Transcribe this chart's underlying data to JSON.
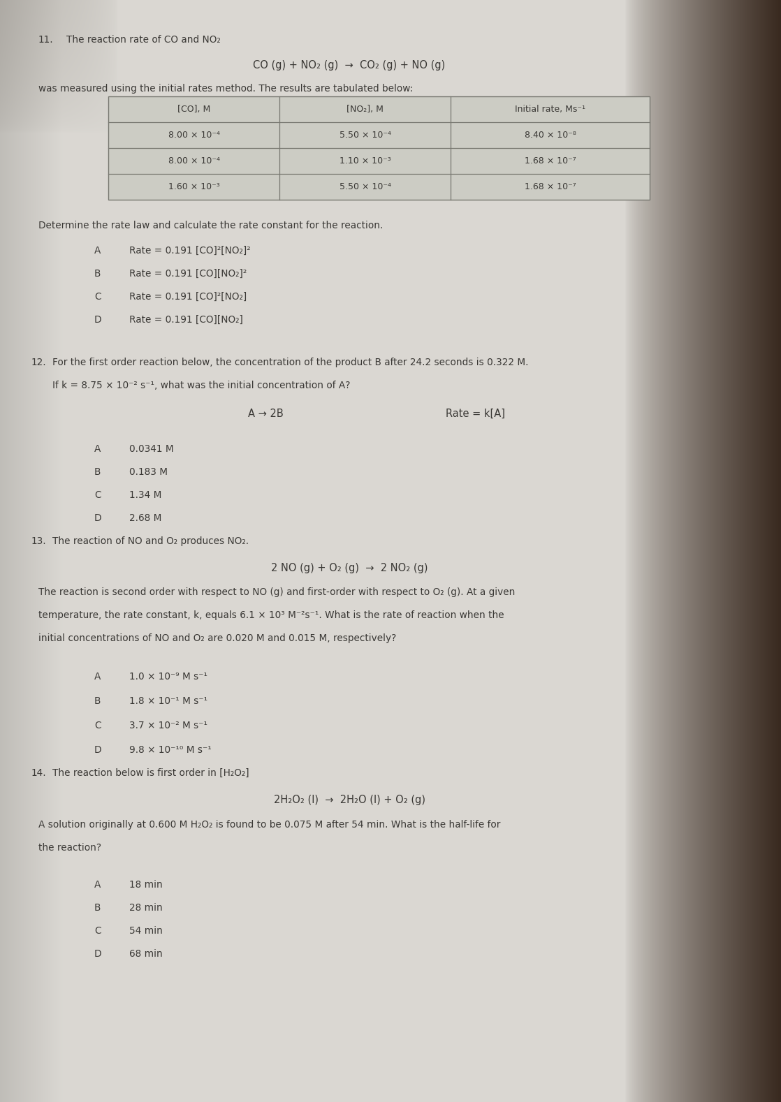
{
  "bg_light": "#d8d5ce",
  "bg_dark_right": "#3a2820",
  "bg_dark_left": "#b0aca4",
  "text_color": "#3a3835",
  "table_border": "#888880",
  "q11_number": "11.",
  "q11_intro": "The reaction rate of CO and NO₂",
  "q11_equation": "CO (g) + NO₂ (g)  →  CO₂ (g) + NO (g)",
  "q11_method": "was measured using the initial rates method. The results are tabulated below:",
  "q11_table_headers": [
    "[CO], M",
    "[NO₂], M",
    "Initial rate, Ms⁻¹"
  ],
  "q11_table_rows": [
    [
      "8.00 × 10⁻⁴",
      "5.50 × 10⁻⁴",
      "8.40 × 10⁻⁸"
    ],
    [
      "8.00 × 10⁻⁴",
      "1.10 × 10⁻³",
      "1.68 × 10⁻⁷"
    ],
    [
      "1.60 × 10⁻³",
      "5.50 × 10⁻⁴",
      "1.68 × 10⁻⁷"
    ]
  ],
  "q11_determine": "Determine the rate law and calculate the rate constant for the reaction.",
  "q11_options": [
    [
      "A",
      "Rate = 0.191 [CO]²[NO₂]²"
    ],
    [
      "B",
      "Rate = 0.191 [CO][NO₂]²"
    ],
    [
      "C",
      "Rate = 0.191 [CO]²[NO₂]"
    ],
    [
      "D",
      "Rate = 0.191 [CO][NO₂]"
    ]
  ],
  "q12_number": "12.",
  "q12_intro": "For the first order reaction below, the concentration of the product B after 24.2 seconds is 0.322 M.",
  "q12_intro2": "If k = 8.75 × 10⁻² s⁻¹, what was the initial concentration of A?",
  "q12_eq_left": "A → 2B",
  "q12_eq_right": "Rate = k[A]",
  "q12_options": [
    [
      "A",
      "0.0341 M"
    ],
    [
      "B",
      "0.183 M"
    ],
    [
      "C",
      "1.34 M"
    ],
    [
      "D",
      "2.68 M"
    ]
  ],
  "q13_number": "13.",
  "q13_intro": "The reaction of NO and O₂ produces NO₂.",
  "q13_equation": "2 NO (g) + O₂ (g)  →  2 NO₂ (g)",
  "q13_body1": "The reaction is second order with respect to NO (g) and first-order with respect to O₂ (g). At a given",
  "q13_body2": "temperature, the rate constant, k, equals 6.1 × 10³ M⁻²s⁻¹. What is the rate of reaction when the",
  "q13_body3": "initial concentrations of NO and O₂ are 0.020 M and 0.015 M, respectively?",
  "q13_options": [
    [
      "A",
      "1.0 × 10⁻⁹ M s⁻¹"
    ],
    [
      "B",
      "1.8 × 10⁻¹ M s⁻¹"
    ],
    [
      "C",
      "3.7 × 10⁻² M s⁻¹"
    ],
    [
      "D",
      "9.8 × 10⁻¹⁰ M s⁻¹"
    ]
  ],
  "q14_number": "14.",
  "q14_intro": "The reaction below is first order in [H₂O₂]",
  "q14_equation": "2H₂O₂ (l)  →  2H₂O (l) + O₂ (g)",
  "q14_body1": "A solution originally at 0.600 M H₂O₂ is found to be 0.075 M after 54 min. What is the half-life for",
  "q14_body2": "the reaction?",
  "q14_options": [
    [
      "A",
      "18 min"
    ],
    [
      "B",
      "28 min"
    ],
    [
      "C",
      "54 min"
    ],
    [
      "D",
      "68 min"
    ]
  ],
  "figw": 11.18,
  "figh": 15.78,
  "dpi": 100
}
